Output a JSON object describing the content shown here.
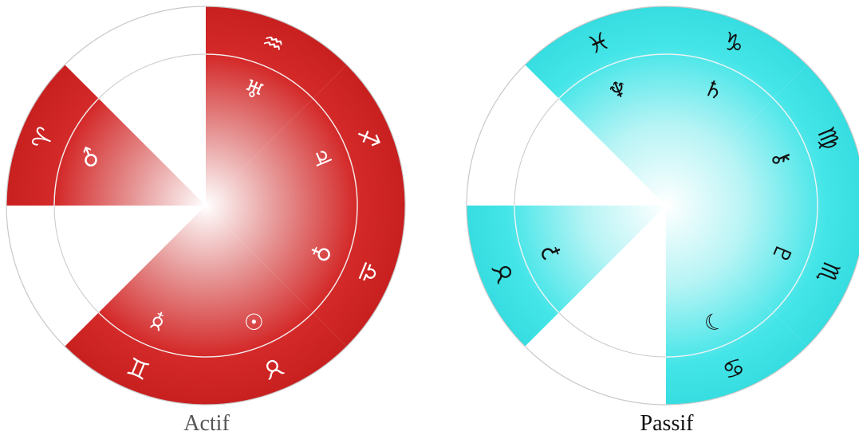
{
  "colors": {
    "active_fill": "#d42a2a",
    "active_glyph": "#ffffff",
    "passive_fill": "#44e5e8",
    "passive_glyph": "#111111",
    "outline": "#c8c8c8"
  },
  "wheels": [
    {
      "id": "actif",
      "caption": "Actif",
      "segments": [
        {
          "start": 0,
          "sign": "aquarius",
          "sign_glyph": "♒",
          "planet": "uranus",
          "planet_glyph": "♅"
        },
        {
          "start": 45,
          "sign": "sagittarius",
          "sign_glyph": "♐",
          "planet": "jupiter",
          "planet_glyph": "♃"
        },
        {
          "start": 90,
          "sign": "libra",
          "sign_glyph": "♎",
          "planet": "venus",
          "planet_glyph": "♀"
        },
        {
          "start": 135,
          "sign": "taurus",
          "sign_glyph": "♉",
          "planet": "sun",
          "planet_glyph": "☉"
        },
        {
          "start": 180,
          "sign": "gemini",
          "sign_glyph": "♊",
          "planet": "mercury",
          "planet_glyph": "☿"
        },
        {
          "start": 270,
          "sign": "aries",
          "sign_glyph": "♈",
          "planet": "mars",
          "planet_glyph": "♂"
        }
      ]
    },
    {
      "id": "passif",
      "caption": "Passif",
      "segments": [
        {
          "start": 0,
          "sign": "capricorn",
          "sign_glyph": "♑",
          "planet": "saturn",
          "planet_glyph": "♄"
        },
        {
          "start": 45,
          "sign": "virgo",
          "sign_glyph": "♍",
          "planet": "chiron",
          "planet_glyph": "⚷"
        },
        {
          "start": 90,
          "sign": "scorpio",
          "sign_glyph": "♏",
          "planet": "pluto",
          "planet_glyph": "♇"
        },
        {
          "start": 135,
          "sign": "cancer",
          "sign_glyph": "♋",
          "planet": "moon",
          "planet_glyph": "☽"
        },
        {
          "start": 225,
          "sign": "taurus",
          "sign_glyph": "♉",
          "planet": "ceres",
          "planet_glyph": "⚳"
        },
        {
          "start": 315,
          "sign": "pisces",
          "sign_glyph": "♓",
          "planet": "neptune",
          "planet_glyph": "♆"
        }
      ]
    }
  ]
}
